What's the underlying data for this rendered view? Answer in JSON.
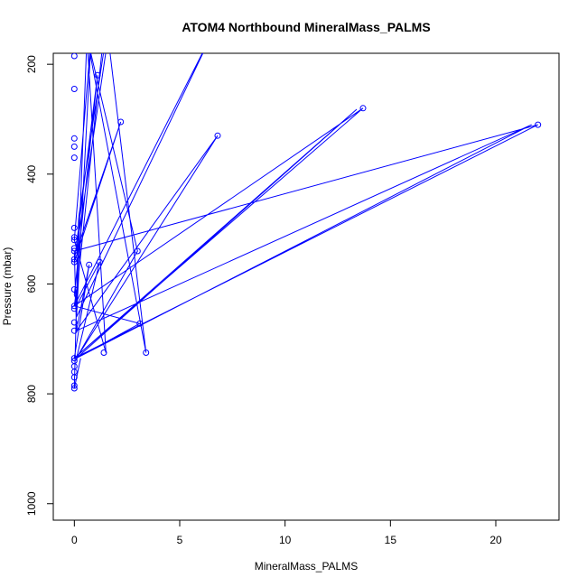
{
  "chart_data": {
    "type": "scatter",
    "title": "ATOM4 Northbound MineralMass_PALMS",
    "xlabel": "MineralMass_PALMS",
    "ylabel": "Pressure (mbar)",
    "xlim": [
      -1,
      23
    ],
    "ylim": [
      1030,
      180
    ],
    "y_reversed": true,
    "x_ticks": [
      0,
      5,
      10,
      15,
      20
    ],
    "y_ticks": [
      200,
      400,
      600,
      800,
      1000
    ],
    "grid": false,
    "series_color": "#0000ff",
    "series": [
      {
        "points": [
          [
            0.3,
            735
          ],
          [
            0,
            790
          ],
          [
            0.2,
            480
          ],
          [
            1.5,
            150
          ],
          [
            1.3,
            180
          ],
          [
            0.1,
            620
          ],
          [
            0,
            640
          ],
          [
            6.6,
            140
          ],
          [
            0.1,
            660
          ],
          [
            0.2,
            590
          ],
          [
            0.8,
            150
          ],
          [
            0,
            520
          ],
          [
            1.5,
            725
          ],
          [
            0.6,
            150
          ],
          [
            3.4,
            725
          ],
          [
            1.6,
            150
          ],
          [
            0.1,
            540
          ],
          [
            2.2,
            305
          ],
          [
            0,
            560
          ],
          [
            1.1,
            220
          ],
          [
            0,
            620
          ],
          [
            0.1,
            630
          ],
          [
            0,
            640
          ],
          [
            13.7,
            280
          ],
          [
            0,
            735
          ],
          [
            22.0,
            310
          ],
          [
            0,
            540
          ],
          [
            0.1,
            685
          ],
          [
            6.8,
            330
          ],
          [
            0.1,
            735
          ],
          [
            3.0,
            540
          ],
          [
            0.6,
            150
          ],
          [
            0.1,
            640
          ],
          [
            1.2,
            560
          ],
          [
            0.1,
            735
          ],
          [
            13.4,
            282
          ],
          [
            0,
            735
          ],
          [
            0.7,
            565
          ],
          [
            0.1,
            685
          ],
          [
            21.7,
            310
          ],
          [
            0.1,
            735
          ],
          [
            3.1,
            672
          ],
          [
            0,
            640
          ],
          [
            0.1,
            610
          ]
        ]
      }
    ],
    "markers": [
      [
        0,
        185
      ],
      [
        0,
        245
      ],
      [
        0,
        335
      ],
      [
        0,
        350
      ],
      [
        0,
        370
      ],
      [
        0,
        498
      ],
      [
        0,
        515
      ],
      [
        0,
        520
      ],
      [
        0,
        535
      ],
      [
        0,
        540
      ],
      [
        0,
        555
      ],
      [
        0,
        560
      ],
      [
        0,
        610
      ],
      [
        0,
        640
      ],
      [
        0,
        645
      ],
      [
        0,
        670
      ],
      [
        0,
        685
      ],
      [
        0,
        735
      ],
      [
        0,
        740
      ],
      [
        0,
        750
      ],
      [
        0,
        760
      ],
      [
        0,
        770
      ],
      [
        0,
        785
      ],
      [
        0,
        790
      ],
      [
        1.1,
        220
      ],
      [
        2.2,
        305
      ],
      [
        13.7,
        280
      ],
      [
        22.0,
        310
      ],
      [
        6.8,
        330
      ],
      [
        3.0,
        540
      ],
      [
        0.7,
        565
      ],
      [
        1.2,
        560
      ],
      [
        3.1,
        672
      ],
      [
        1.4,
        725
      ],
      [
        3.4,
        725
      ]
    ]
  }
}
